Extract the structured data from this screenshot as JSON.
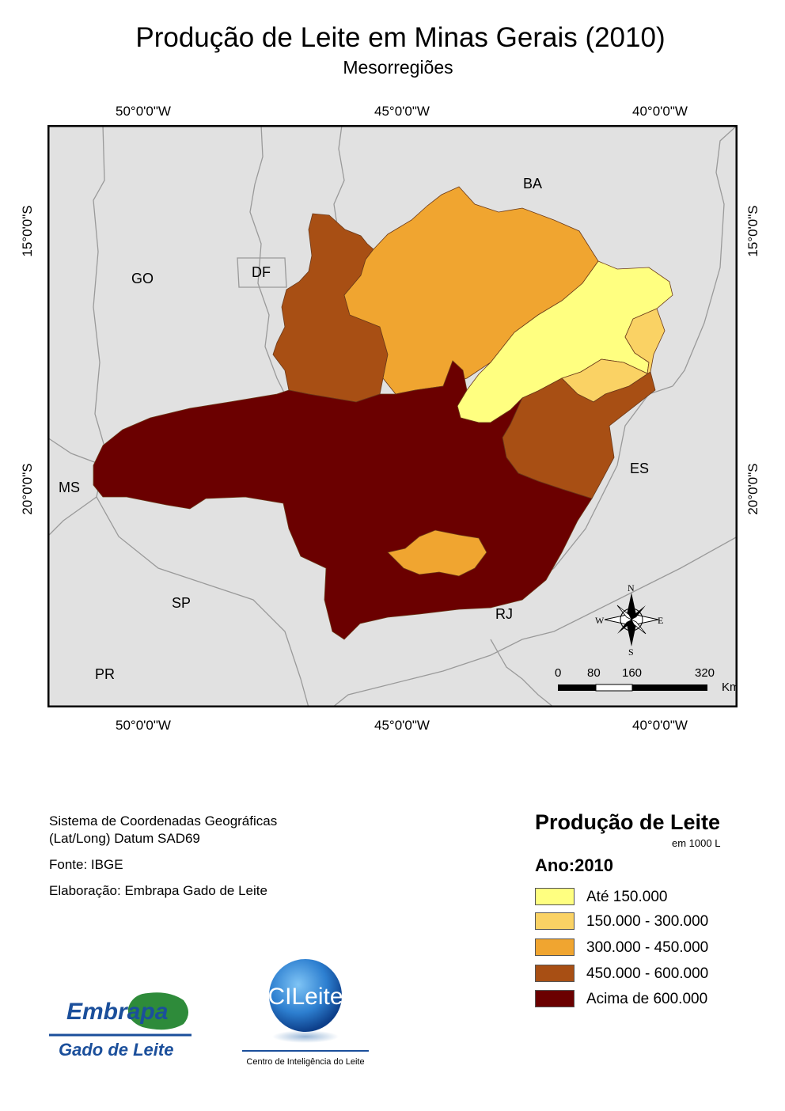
{
  "title": "Produção de Leite em Minas Gerais (2010)",
  "subtitle": "Mesorregiões",
  "coords": {
    "lon_left": "50°0'0\"W",
    "lon_center": "45°0'0\"W",
    "lon_right": "40°0'0\"W",
    "lat_top": "15°0'0\"S",
    "lat_bottom": "20°0'0\"S"
  },
  "map": {
    "state_labels": [
      "BA",
      "GO",
      "DF",
      "MS",
      "SP",
      "PR",
      "RJ",
      "ES"
    ],
    "compass": {
      "n": "N",
      "s": "S",
      "e": "E",
      "w": "W"
    },
    "scale_bar": {
      "ticks": [
        "0",
        "80",
        "160",
        "320"
      ],
      "unit": "Km"
    },
    "colors": {
      "background": "#e1e1e1",
      "borders": "#9a9a9a",
      "class1": "#ffff80",
      "class2": "#fad264",
      "class3": "#f0a530",
      "class4": "#a84f14",
      "class5": "#6b0000"
    }
  },
  "info": {
    "line1": "Sistema de Coordenadas Geográficas",
    "line2": "(Lat/Long) Datum SAD69",
    "source": "Fonte: IBGE",
    "elaboration": "Elaboração: Embrapa Gado de Leite"
  },
  "legend": {
    "title": "Produção de Leite",
    "unit": "em 1000 L",
    "year_label": "Ano:2010",
    "items": [
      {
        "label": "Até 150.000",
        "color": "#ffff80"
      },
      {
        "label": "150.000 - 300.000",
        "color": "#fad264"
      },
      {
        "label": "300.000 - 450.000",
        "color": "#f0a530"
      },
      {
        "label": "450.000 - 600.000",
        "color": "#a84f14"
      },
      {
        "label": "Acima de 600.000",
        "color": "#6b0000"
      }
    ]
  },
  "logos": {
    "embrapa_name": "Embrapa",
    "embrapa_unit": "Gado de Leite",
    "cileite_name": "CILeite",
    "cileite_caption": "Centro de Inteligência do Leite"
  }
}
